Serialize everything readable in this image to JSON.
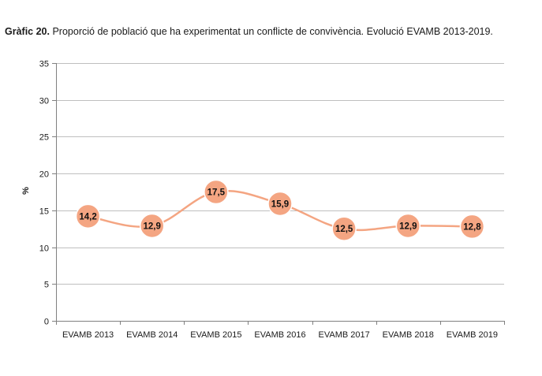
{
  "figure": {
    "label": "Gràfic 20.",
    "caption": "Proporció de població que ha experimentat un conflicte de convivència. Evolució EVAMB 2013-2019."
  },
  "chart_data": {
    "type": "line",
    "title": "Gràfic 20. Proporció de població que ha experimentat un conflicte de convivència. Evolució EVAMB 2013-2019.",
    "xlabel": "",
    "ylabel": "%",
    "categories": [
      "EVAMB 2013",
      "EVAMB 2014",
      "EVAMB 2015",
      "EVAMB 2016",
      "EVAMB 2017",
      "EVAMB 2018",
      "EVAMB 2019"
    ],
    "series": [
      {
        "values": [
          14.2,
          12.9,
          17.5,
          15.9,
          12.5,
          12.9,
          12.8
        ],
        "value_labels": [
          "14,2",
          "12,9",
          "17,5",
          "15,9",
          "12,5",
          "12,9",
          "12,8"
        ]
      }
    ],
    "yticks": [
      "0",
      "5",
      "10",
      "15",
      "20",
      "25",
      "30",
      "35"
    ],
    "ylim": [
      0,
      35
    ],
    "grid": true,
    "smooth": true,
    "legend": "none",
    "colors": {
      "line": "#F4A582",
      "marker": "#F4A582",
      "grid": "#BFBFBF",
      "axis": "#808080"
    }
  }
}
